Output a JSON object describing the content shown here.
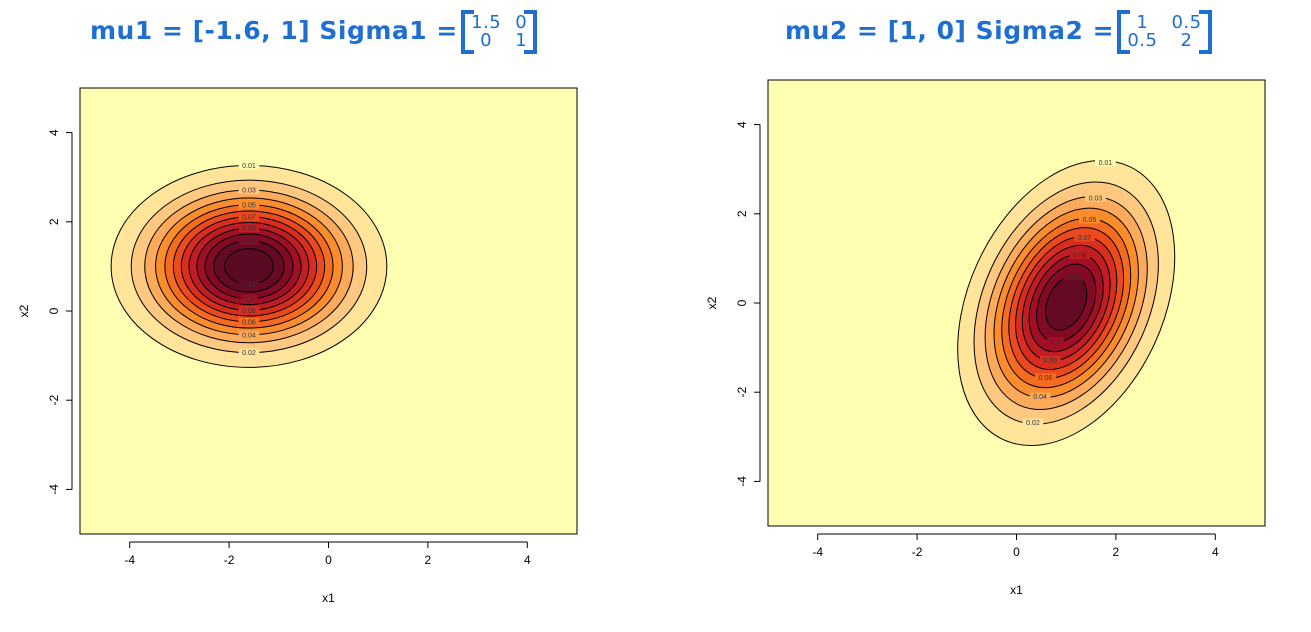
{
  "panels": [
    {
      "title_prefix": "mu1 = [-1.6, 1] Sigma1 =",
      "sigma_matrix": [
        "1.5",
        "0",
        "0",
        "1"
      ],
      "chart_data": {
        "type": "heatmap",
        "subtype": "bivariate normal density contour (filled)",
        "xlabel": "x1",
        "ylabel": "x2",
        "xlim": [
          -5,
          5
        ],
        "ylim": [
          -5,
          5
        ],
        "x_ticks": [
          -4,
          -2,
          0,
          2,
          4
        ],
        "y_ticks": [
          -4,
          -2,
          0,
          2,
          4
        ],
        "mu": [
          -1.6,
          1
        ],
        "sigma": [
          [
            1.5,
            0
          ],
          [
            0,
            1
          ]
        ],
        "contour_levels": [
          0.01,
          0.02,
          0.03,
          0.04,
          0.05,
          0.06,
          0.07,
          0.08,
          0.09,
          0.1,
          0.11,
          0.12
        ],
        "colors": [
          "#ffffb2",
          "#ffe49a",
          "#fec880",
          "#fdab5a",
          "#fb8d2c",
          "#f46c1f",
          "#ea4a1e",
          "#d92d1f",
          "#c01e22",
          "#a00f25",
          "#820a24",
          "#640a24",
          "#5a0a22"
        ],
        "background": "#ffffb2",
        "grid": false,
        "legend": "none"
      }
    },
    {
      "title_prefix": "mu2 = [1, 0] Sigma2 =",
      "sigma_matrix": [
        "1",
        "0.5",
        "0.5",
        "2"
      ],
      "chart_data": {
        "type": "heatmap",
        "subtype": "bivariate normal density contour (filled)",
        "xlabel": "x1",
        "ylabel": "x2",
        "xlim": [
          -5,
          5
        ],
        "ylim": [
          -5,
          5
        ],
        "x_ticks": [
          -4,
          -2,
          0,
          2,
          4
        ],
        "y_ticks": [
          -4,
          -2,
          0,
          2,
          4
        ],
        "mu": [
          1,
          0
        ],
        "sigma": [
          [
            1,
            0.5
          ],
          [
            0.5,
            2
          ]
        ],
        "contour_levels": [
          0.01,
          0.02,
          0.03,
          0.04,
          0.05,
          0.06,
          0.07,
          0.08,
          0.09,
          0.1,
          0.11
        ],
        "colors": [
          "#ffffb2",
          "#ffe49a",
          "#fec880",
          "#fdab5a",
          "#fb8d2c",
          "#f46c1f",
          "#ea4a1e",
          "#d92d1f",
          "#c01e22",
          "#a00f25",
          "#820a24",
          "#640a24"
        ],
        "background": "#ffffb2",
        "grid": false,
        "legend": "none"
      }
    }
  ]
}
